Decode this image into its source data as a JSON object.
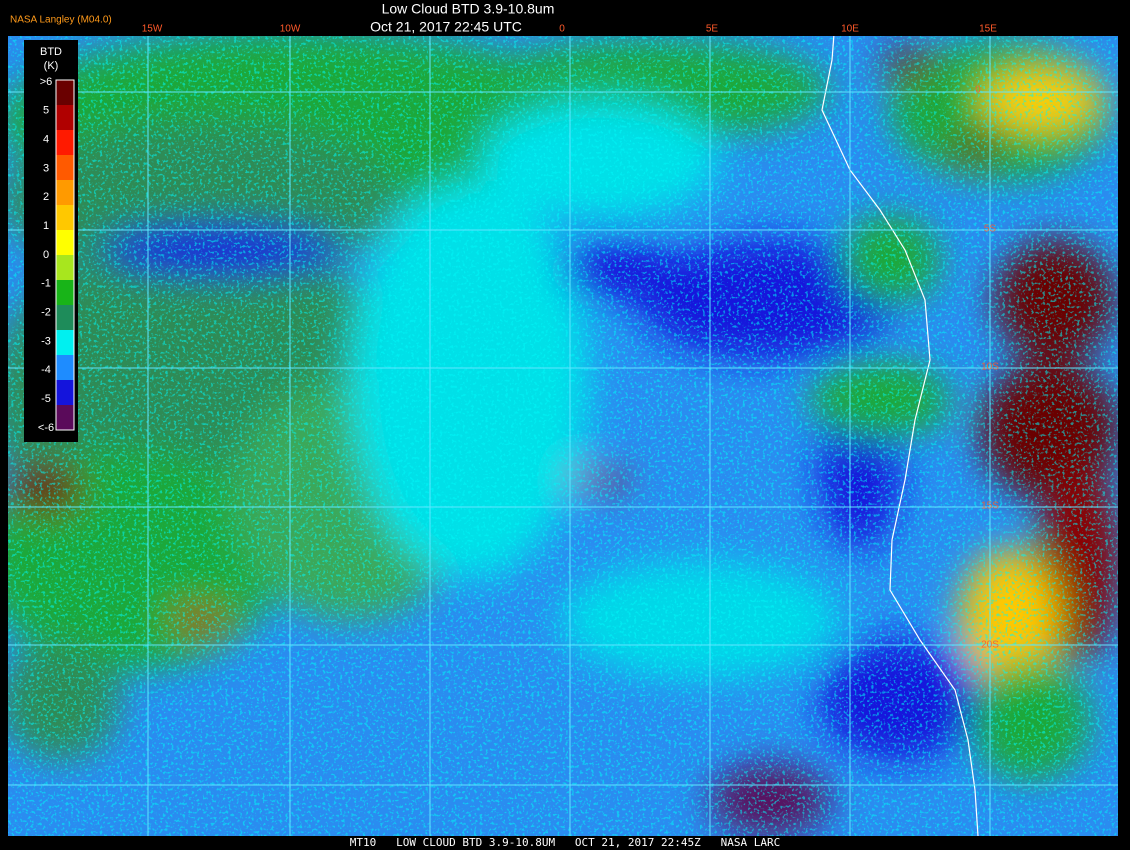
{
  "header": {
    "title": "Low Cloud BTD 3.9-10.8um",
    "subtitle": "Oct 21, 2017 22:45 UTC",
    "producer": "NASA Langley (M04.0)"
  },
  "grid_labels": {
    "longitude": [
      "15W",
      "10W",
      "0",
      "5E",
      "10E",
      "15E"
    ],
    "latitude": [
      "0",
      "5S",
      "10S",
      "15S",
      "20S"
    ]
  },
  "colorbar": {
    "title": "BTD",
    "unit": "(K)",
    "labels": [
      ">6",
      "5",
      "4",
      "3",
      "2",
      "1",
      "0",
      "-1",
      "-2",
      "-3",
      "-4",
      "-5",
      "<-6"
    ],
    "colors": [
      "#6a0000",
      "#b00000",
      "#ff1a00",
      "#ff5a00",
      "#ff9a00",
      "#ffc800",
      "#ffff00",
      "#a8e61e",
      "#18b418",
      "#1e8c5a",
      "#00f0f0",
      "#1e8cff",
      "#1414dc",
      "#5a0a5a"
    ]
  },
  "footer": "MT10   LOW CLOUD BTD 3.9-10.8UM   OCT 21, 2017 22:45Z   NASA LARC"
}
